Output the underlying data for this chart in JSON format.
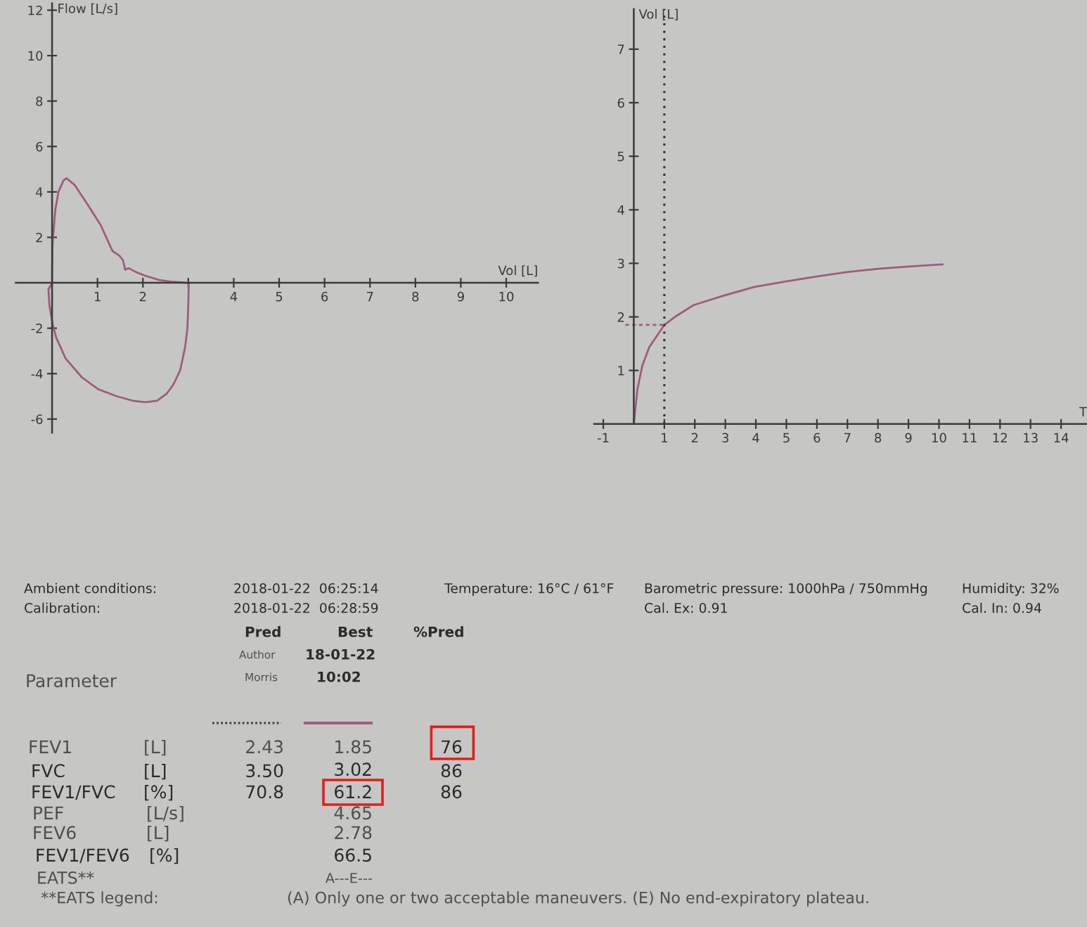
{
  "chart_data": [
    {
      "type": "line",
      "xlabel": "Vol [L]",
      "ylabel": "Flow [L/s]",
      "xlim": [
        -0.8,
        10.7
      ],
      "ylim": [
        -6.6,
        12.3
      ],
      "xticks": [
        1,
        2,
        {
          "value": 3,
          "label": null
        },
        4,
        5,
        6,
        7,
        8,
        9,
        10
      ],
      "yticks": [
        -6,
        -4,
        -2,
        2,
        4,
        6,
        8,
        10,
        12
      ],
      "series": [
        {
          "color": "#9e5c7c",
          "x": [
            -0.08,
            0,
            0.01,
            0.07,
            0.14,
            0.25,
            0.32,
            0.5,
            0.81,
            1.07,
            1.33,
            1.48,
            1.56,
            1.61,
            1.69,
            1.85,
            2.05,
            2.36,
            2.67,
            2.98,
            3.01
          ],
          "values": [
            -0.3,
            0,
            1.7,
            3.2,
            4.0,
            4.5,
            4.6,
            4.3,
            3.36,
            2.54,
            1.4,
            1.2,
            1.0,
            0.58,
            0.64,
            0.47,
            0.31,
            0.12,
            0.04,
            0,
            0
          ]
        },
        {
          "color": "#9e5c7c",
          "x": [
            -0.08,
            -0.06,
            0.01,
            0.09,
            0.3,
            0.66,
            1.02,
            1.43,
            1.79,
            2.05,
            2.31,
            2.52,
            2.67,
            2.82,
            2.93,
            2.98,
            3.0,
            3.01
          ],
          "values": [
            -0.3,
            -0.97,
            -1.8,
            -2.41,
            -3.34,
            -4.17,
            -4.69,
            -5.0,
            -5.2,
            -5.26,
            -5.2,
            -4.89,
            -4.48,
            -3.86,
            -2.83,
            -2.0,
            -0.97,
            0
          ]
        }
      ]
    },
    {
      "type": "line",
      "xlabel": "T",
      "ylabel": "Vol [L]",
      "xlim": [
        -1.3,
        14.85
      ],
      "ylim": [
        0,
        7.75
      ],
      "xticks": [
        -1,
        1,
        2,
        3,
        4,
        5,
        6,
        7,
        8,
        9,
        10,
        11,
        12,
        13,
        14
      ],
      "yticks": [
        1,
        2,
        3,
        4,
        5,
        6,
        7
      ],
      "series": [
        {
          "color": "#9e5c7c",
          "x": [
            0,
            0.12,
            0.28,
            0.51,
            0.74,
            1.0,
            1.35,
            1.96,
            2.96,
            3.96,
            4.95,
            5.95,
            7.02,
            8.02,
            9.02,
            10.12
          ],
          "values": [
            0,
            0.65,
            1.09,
            1.44,
            1.63,
            1.85,
            2.0,
            2.22,
            2.4,
            2.56,
            2.66,
            2.75,
            2.84,
            2.9,
            2.94,
            2.98
          ]
        },
        {
          "color": "#9e5c7c",
          "line_style": "dotted",
          "x": [
            -0.25,
            1.0
          ],
          "values": [
            1.85,
            1.85
          ]
        }
      ],
      "ref_lines": [
        {
          "axis": "x",
          "value": 1,
          "color": "#333333",
          "line_style": "dotted"
        }
      ]
    },
    {
      "type": "other",
      "annotations": [
        "Ambient conditions:",
        "2018-01-22  06:25:14",
        "Temperature: 16°C / 61°F",
        "Barometric pressure: 1000hPa / 750mmHg",
        "Humidity: 32%",
        "Calibration:",
        "2018-01-22  06:28:59",
        "Cal. Ex: 0.91",
        "Cal. In: 0.94",
        "Pred",
        "Best",
        "%Pred",
        "Author",
        "18-01-22",
        "Parameter",
        "Morris",
        "10:02",
        "FEV1",
        "[L]",
        "2.43",
        "1.85",
        "76",
        "FVC",
        "[L]",
        "3.50",
        "3.02",
        "86",
        "FEV1/FVC",
        "[%]",
        "70.8",
        "61.2",
        "86",
        "PEF",
        "[L/s]",
        "4.65",
        "FEV6",
        "[L]",
        "2.78",
        "FEV1/FEV6",
        "[%]",
        "66.5",
        "EATS**",
        "A---E---",
        "**EATS legend:",
        "(A) Only one or two acceptable maneuvers. (E) No end-expiratory plateau."
      ]
    }
  ]
}
